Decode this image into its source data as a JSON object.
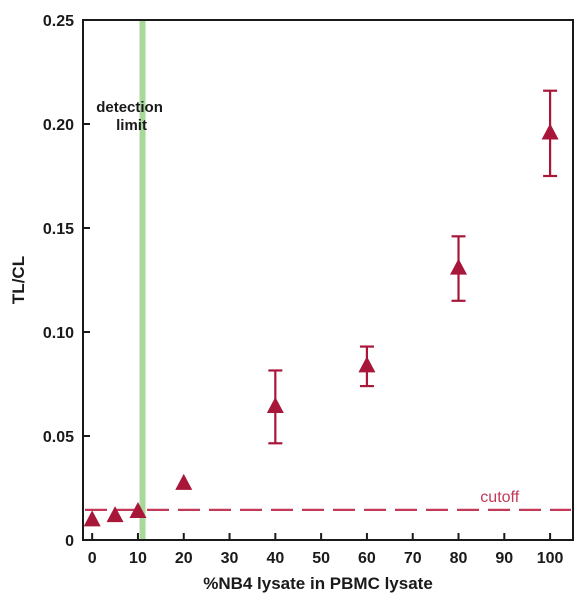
{
  "chart_data": {
    "type": "scatter",
    "xlabel": "%NB4 lysate in PBMC lysate",
    "ylabel": "TL/CL",
    "xlim": [
      -2,
      105
    ],
    "ylim": [
      0,
      0.25
    ],
    "x_ticks": [
      "0",
      "10",
      "20",
      "30",
      "40",
      "50",
      "60",
      "70",
      "80",
      "90",
      "100"
    ],
    "y_ticks": [
      "0",
      "0.05",
      "0.10",
      "0.15",
      "0.20",
      "0.25"
    ],
    "grid": false,
    "series": [
      {
        "marker": "triangle",
        "color": "#a8163a",
        "points": [
          {
            "x": 0,
            "y": 0.0095,
            "err": 0.0008
          },
          {
            "x": 5,
            "y": 0.0115,
            "err": 0.0012
          },
          {
            "x": 10,
            "y": 0.0135,
            "err": 0.001
          },
          {
            "x": 20,
            "y": 0.027,
            "err": 0.0012
          },
          {
            "x": 40,
            "y": 0.064,
            "err": 0.0175
          },
          {
            "x": 60,
            "y": 0.0835,
            "err": 0.0095
          },
          {
            "x": 80,
            "y": 0.1305,
            "err": 0.0155
          },
          {
            "x": 100,
            "y": 0.1955,
            "err": 0.0205
          }
        ]
      }
    ],
    "detection_limit": {
      "x": 11,
      "label_line1": "detection",
      "label_line2": "limit",
      "color": "#a8d89a"
    },
    "cutoff": {
      "y": 0.0145,
      "label": "cutoff",
      "color": "#c23a58"
    }
  }
}
